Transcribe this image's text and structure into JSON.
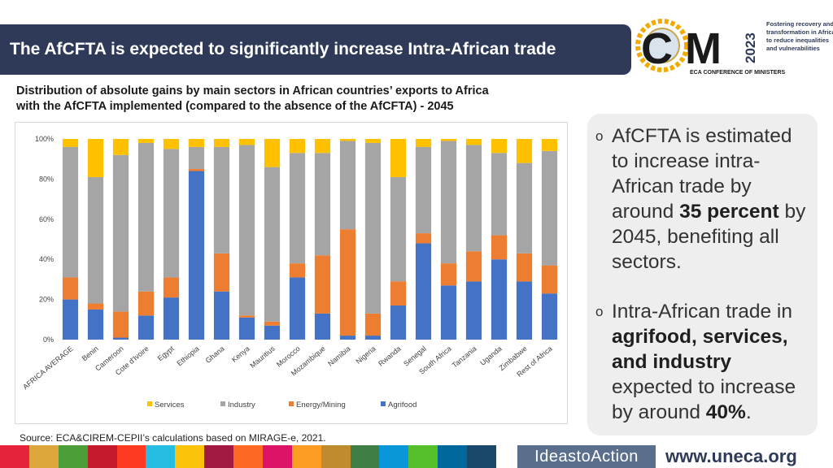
{
  "header": {
    "title": "The AfCFTA is expected to significantly increase Intra-African trade"
  },
  "logo": {
    "letters_c": "C",
    "letters_m": "M",
    "year": "2023",
    "tagline": [
      "Fostering recovery and",
      "transformation in Africa",
      "to reduce inequalities",
      "and vulnerabilities"
    ],
    "caption": "ECA CONFERENCE OF MINISTERS"
  },
  "subtitle": {
    "line1": "Distribution of absolute gains by main sectors in African countries’ exports to Africa",
    "line2": "with the AfCFTA implemented (compared to the absence of the AfCFTA) - 2045"
  },
  "chart_data": {
    "type": "bar",
    "stacked": true,
    "title": "",
    "xlabel": "",
    "ylabel": "",
    "ylim": [
      0,
      100
    ],
    "y_ticks": [
      "0%",
      "20%",
      "40%",
      "60%",
      "80%",
      "100%"
    ],
    "y_tick_values": [
      0,
      20,
      40,
      60,
      80,
      100
    ],
    "legend_position": "bottom",
    "categories": [
      "AFRICA AVERAGE",
      "Benin",
      "Cameroon",
      "Cote d'Ivoire",
      "Egypt",
      "Ethiopia",
      "Ghana",
      "Kenya",
      "Mauritius",
      "Morocco",
      "Mozambique",
      "Namibia",
      "Nigeria",
      "Rwanda",
      "Senegal",
      "South Africa",
      "Tanzania",
      "Uganda",
      "Zimbabwe",
      "Rest of Africa"
    ],
    "series": [
      {
        "name": "Agrifood",
        "color": "#4472c4",
        "values": [
          20,
          15,
          1,
          12,
          21,
          84,
          24,
          11,
          7,
          31,
          13,
          2,
          2,
          17,
          48,
          27,
          29,
          40,
          29,
          23
        ]
      },
      {
        "name": "Energy/Mining",
        "color": "#ed7d31",
        "values": [
          11,
          3,
          13,
          12,
          10,
          1,
          19,
          1,
          2,
          7,
          29,
          53,
          11,
          12,
          5,
          11,
          15,
          12,
          14,
          14
        ]
      },
      {
        "name": "Industry",
        "color": "#a5a5a5",
        "values": [
          65,
          63,
          78,
          74,
          64,
          11,
          53,
          85,
          77,
          55,
          51,
          44,
          85,
          52,
          43,
          61,
          53,
          41,
          45,
          57
        ]
      },
      {
        "name": "Services",
        "color": "#ffc000",
        "values": [
          4,
          19,
          8,
          2,
          5,
          4,
          4,
          3,
          14,
          7,
          7,
          1,
          2,
          19,
          4,
          1,
          3,
          7,
          12,
          6
        ]
      }
    ],
    "legend_order": [
      "Services",
      "Industry",
      "Energy/Mining",
      "Agrifood"
    ]
  },
  "side_panel": {
    "bullet1": {
      "marker": "o",
      "pre": "AfCFTA is estimated to increase intra-African trade by around ",
      "bold": "35 percent",
      "post": " by 2045, benefiting all sectors."
    },
    "bullet2": {
      "marker": "o",
      "pre": "Intra-African trade in ",
      "bold": "agrifood, services, and industry",
      "mid": " expected to increase by around ",
      "bold2": "40%",
      "post": "."
    }
  },
  "source": "Source: ECA&CIREM-CEPII’s calculations based on MIRAGE-e, 2021.",
  "footer": {
    "ideas": "IdeastoAction",
    "url": "www.uneca.org",
    "strip_colors": [
      "#e5243b",
      "#dda63a",
      "#4c9f38",
      "#c5192d",
      "#ff3a21",
      "#26bde2",
      "#fcc30b",
      "#a21942",
      "#fd6925",
      "#dd1367",
      "#fd9d24",
      "#bf8b2e",
      "#3f7e44",
      "#0a97d9",
      "#56c02b",
      "#00689d",
      "#19486a"
    ]
  }
}
